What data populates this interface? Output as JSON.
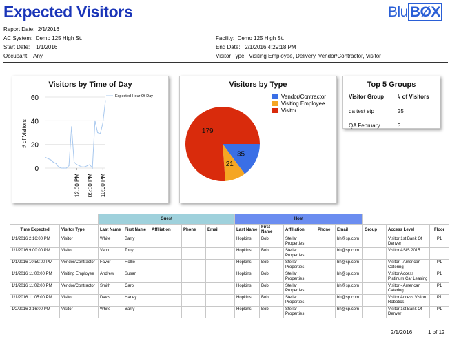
{
  "header": {
    "title": "Expected Visitors",
    "logo_text": "Blu",
    "logo_box": "BØX",
    "report_date_label": "Report Date:",
    "report_date": "2/1/2016",
    "ac_system_label": "AC System:",
    "ac_system": "Demo 125 High St.",
    "start_date_label": "Start Date:",
    "start_date": "1/1/2016",
    "occupant_label": "Occupant:",
    "occupant": "Any",
    "facility_label": "Facility:",
    "facility": "Demo 125 High St.",
    "end_date_label": "End Date:",
    "end_date": "2/1/2016 4:29:18 PM",
    "visitor_type_label": "Visitor Type:",
    "visitor_type": "Visiting Employee, Delivery, Vendor/Contractor, Visitor"
  },
  "chart_data": [
    {
      "type": "line",
      "title": "Visitors by Time of Day",
      "ylabel": "# of Visitors",
      "xlabel": "",
      "ylim": [
        0,
        60
      ],
      "yticks": [
        0,
        20,
        40,
        60
      ],
      "xtick_labels": [
        "12:00 PM",
        "05:00 PM",
        "10:00 PM"
      ],
      "xtick_hours": [
        12,
        17,
        22
      ],
      "xlim": [
        0,
        23
      ],
      "grid": true,
      "legend_position": "top-right",
      "series": [
        {
          "name": "Expected Hour Of Day",
          "color": "#a8c8ee",
          "x": [
            0,
            1,
            2,
            3,
            4,
            5,
            6,
            7,
            8,
            9,
            10,
            11,
            12,
            13,
            14,
            15,
            16,
            17,
            18,
            19,
            20,
            21,
            22,
            23
          ],
          "y": [
            9,
            8,
            7,
            5,
            4,
            1,
            0,
            0,
            0,
            2,
            35,
            5,
            3,
            2,
            1,
            1,
            2,
            3,
            0,
            40,
            30,
            29,
            38,
            57
          ]
        }
      ]
    },
    {
      "type": "pie",
      "title": "Visitors by Type",
      "legend_position": "top-right",
      "slices": [
        {
          "label": "Vendor/Contractor",
          "value": 35,
          "color": "#3a6fe6"
        },
        {
          "label": "Visiting Employee",
          "value": 21,
          "color": "#f5a623"
        },
        {
          "label": "Visitor",
          "value": 179,
          "color": "#d92b0c"
        }
      ]
    },
    {
      "type": "table",
      "title": "Top 5 Groups",
      "columns": [
        "Visitor Group",
        "# of Visitors"
      ],
      "rows": [
        [
          "qa test stp",
          "25"
        ],
        [
          "QA February",
          "3"
        ]
      ]
    }
  ],
  "table": {
    "groups": {
      "guest": "Guest",
      "host": "Host"
    },
    "columns": [
      "Time Expected",
      "Visitor Type",
      "Last Name",
      "First Name",
      "Affiliation",
      "Phone",
      "Email",
      "Last Name",
      "First Name",
      "Affiliation",
      "Phone",
      "Email",
      "Group",
      "Access Level",
      "Floor"
    ],
    "rows": [
      [
        "1/1/2016 2:16:00 PM",
        "Visitor",
        "White",
        "Barry",
        "",
        "",
        "",
        "Hopkins",
        "Bob",
        "Stellar Properties",
        "",
        "bh@sp.com",
        "",
        "Visitor 1st Bank Of Denver",
        "P1"
      ],
      [
        "1/1/2016 9:00:00 PM",
        "Visitor",
        "Varco",
        "Tony",
        "",
        "",
        "",
        "Hopkins",
        "Bob",
        "Stellar Properties",
        "",
        "bh@sp.com",
        "",
        "Visitor ASIS 2015",
        ""
      ],
      [
        "1/1/2016 10:59:00 PM",
        "Vendor/Contractor",
        "Favor",
        "Hollie",
        "",
        "",
        "",
        "Hopkins",
        "Bob",
        "Stellar Properties",
        "",
        "bh@sp.com",
        "",
        "Visitor - American Catering",
        "P1"
      ],
      [
        "1/1/2016 11:00:00 PM",
        "Visiting Employee",
        "Andrew",
        "Susan",
        "",
        "",
        "",
        "Hopkins",
        "Bob",
        "Stellar Properties",
        "",
        "bh@sp.com",
        "",
        "Visitor Access Platinum Car Leasing",
        "P1"
      ],
      [
        "1/1/2016 11:02:00 PM",
        "Vendor/Contractor",
        "Smith",
        "Carol",
        "",
        "",
        "",
        "Hopkins",
        "Bob",
        "Stellar Properties",
        "",
        "bh@sp.com",
        "",
        "Visitor - American Catering",
        "P1"
      ],
      [
        "1/1/2016 11:05:00 PM",
        "Visitor",
        "Davis",
        "Harley",
        "",
        "",
        "",
        "Hopkins",
        "Bob",
        "Stellar Properties",
        "",
        "bh@sp.com",
        "",
        "Visitor Access Vision Robotics",
        "P1"
      ],
      [
        "1/2/2016 2:16:00 PM",
        "Visitor",
        "White",
        "Barry",
        "",
        "",
        "",
        "Hopkins",
        "Bob",
        "Stellar Properties",
        "",
        "bh@sp.com",
        "",
        "Visitor 1st Bank Of Denver",
        "P1"
      ]
    ]
  },
  "footer": {
    "date": "2/1/2016",
    "page": "1 of 12"
  }
}
